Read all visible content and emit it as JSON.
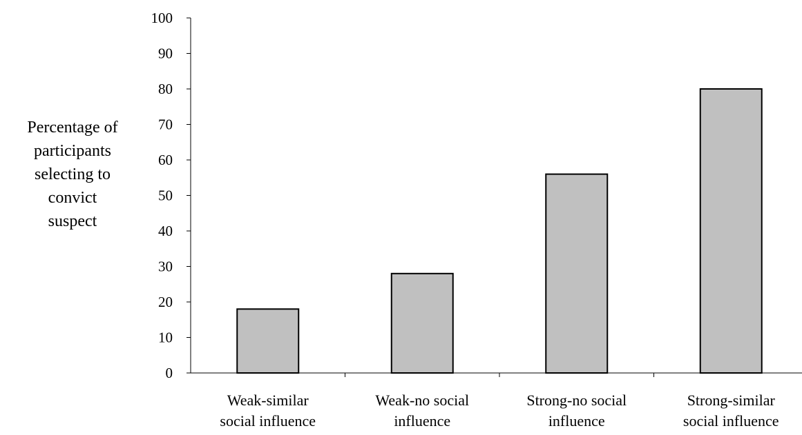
{
  "chart_data": {
    "type": "bar",
    "categories": [
      [
        "Weak-similar",
        "social influence"
      ],
      [
        "Weak-no social",
        "influence"
      ],
      [
        "Strong-no social",
        "influence"
      ],
      [
        "Strong-similar",
        "social influence"
      ]
    ],
    "values": [
      18,
      28,
      56,
      80
    ],
    "title": "",
    "xlabel": "",
    "ylabel": [
      "Percentage of",
      "participants",
      "selecting to",
      "convict",
      "suspect"
    ],
    "ylim": [
      0,
      100
    ],
    "yticks": [
      0,
      10,
      20,
      30,
      40,
      50,
      60,
      70,
      80,
      90,
      100
    ],
    "grid": false,
    "legend": "none",
    "bar_color": "#c0c0c0",
    "bar_edge_color": "#000000"
  }
}
